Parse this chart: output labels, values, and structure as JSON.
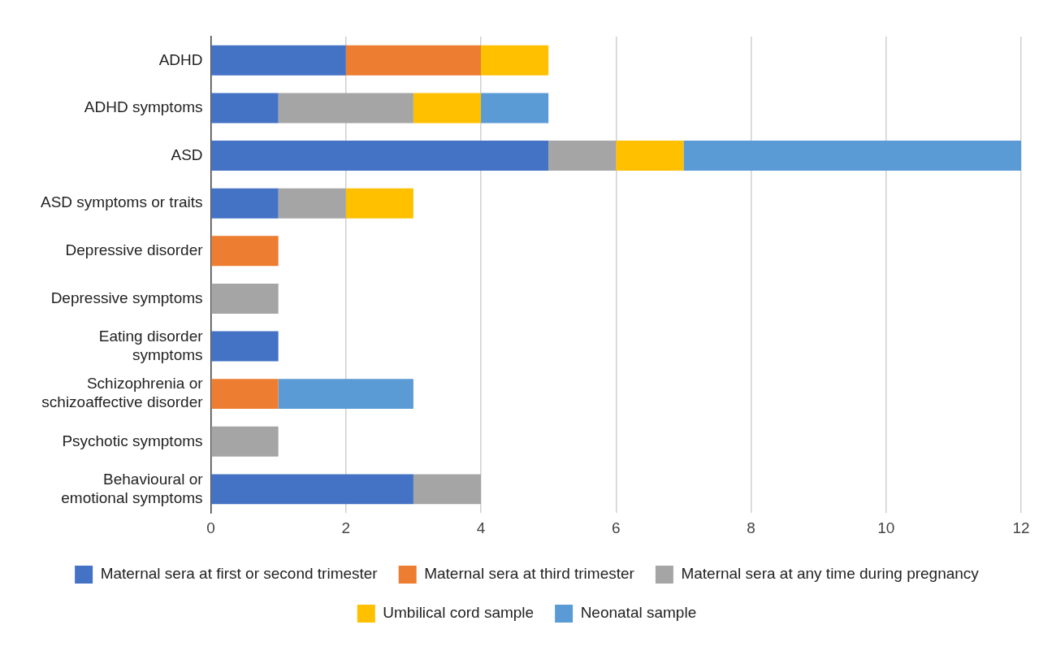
{
  "chart_data": {
    "type": "bar",
    "orientation": "horizontal",
    "stacked": true,
    "categories": [
      "ADHD",
      "ADHD symptoms",
      "ASD",
      "ASD symptoms or traits",
      "Depressive disorder",
      "Depressive symptoms",
      "Eating disorder\nsymptoms",
      "Schizophrenia or\nschizoaffective disorder",
      "Psychotic symptoms",
      "Behavioural or\nemotional symptoms"
    ],
    "series": [
      {
        "name": "Maternal sera at first or second trimester",
        "color": "#4472c4",
        "values": [
          2,
          1,
          5,
          1,
          null,
          null,
          1,
          null,
          null,
          3
        ]
      },
      {
        "name": "Maternal sera at third trimester",
        "color": "#ed7d31",
        "values": [
          2,
          null,
          null,
          null,
          1,
          null,
          null,
          1,
          null,
          null
        ]
      },
      {
        "name": "Maternal sera at any time during pregnancy",
        "color": "#a5a5a5",
        "values": [
          null,
          2,
          1,
          1,
          null,
          1,
          null,
          null,
          1,
          1
        ]
      },
      {
        "name": "Umbilical cord sample",
        "color": "#ffc000",
        "values": [
          1,
          1,
          1,
          1,
          null,
          null,
          null,
          null,
          null,
          null
        ]
      },
      {
        "name": "Neonatal sample",
        "color": "#5b9bd5",
        "values": [
          null,
          1,
          5,
          null,
          null,
          null,
          null,
          2,
          null,
          null
        ]
      }
    ],
    "xlim": [
      0,
      12
    ],
    "xticks": [
      0,
      2,
      4,
      6,
      8,
      10,
      12
    ],
    "grid": "x",
    "legend": "bottom"
  }
}
